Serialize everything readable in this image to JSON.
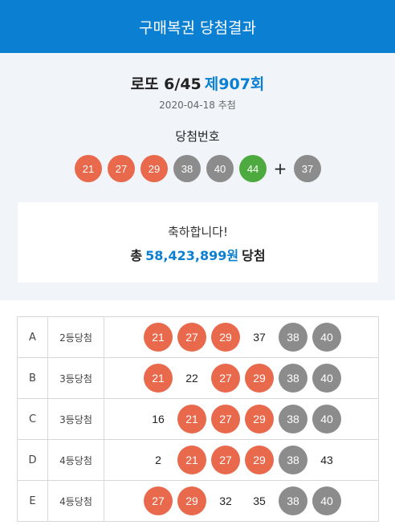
{
  "header": {
    "title": "구매복권 당첨결과"
  },
  "summary": {
    "game_name": "로또 6/45",
    "round": "제907회",
    "draw_date": "2020-04-18 추첨",
    "winning_label": "당첨번호",
    "winning_numbers": [
      "21",
      "27",
      "29",
      "38",
      "40",
      "44"
    ],
    "plus_sign": "+",
    "bonus_number": "37",
    "congrats": "축하합니다!",
    "prize_prefix": "총",
    "prize_amount": "58,423,899원",
    "prize_suffix": "당첨"
  },
  "colors": {
    "header_bg": "#0b7fd1",
    "accent": "#0b7fd1",
    "ball_red": "#e8694c",
    "ball_gray": "#8c8c8c",
    "ball_green": "#4caa3f"
  },
  "winning_ball_colors": [
    "red",
    "red",
    "red",
    "gray",
    "gray",
    "green"
  ],
  "bonus_ball_color": "gray",
  "tickets": [
    {
      "game": "A",
      "rank": "2등당첨",
      "numbers": [
        {
          "n": "21",
          "style": "red"
        },
        {
          "n": "27",
          "style": "red"
        },
        {
          "n": "29",
          "style": "red"
        },
        {
          "n": "37",
          "style": "plain"
        },
        {
          "n": "38",
          "style": "gray"
        },
        {
          "n": "40",
          "style": "gray"
        }
      ]
    },
    {
      "game": "B",
      "rank": "3등당첨",
      "numbers": [
        {
          "n": "21",
          "style": "red"
        },
        {
          "n": "22",
          "style": "plain"
        },
        {
          "n": "27",
          "style": "red"
        },
        {
          "n": "29",
          "style": "red"
        },
        {
          "n": "38",
          "style": "gray"
        },
        {
          "n": "40",
          "style": "gray"
        }
      ]
    },
    {
      "game": "C",
      "rank": "3등당첨",
      "numbers": [
        {
          "n": "16",
          "style": "plain"
        },
        {
          "n": "21",
          "style": "red"
        },
        {
          "n": "27",
          "style": "red"
        },
        {
          "n": "29",
          "style": "red"
        },
        {
          "n": "38",
          "style": "gray"
        },
        {
          "n": "40",
          "style": "gray"
        }
      ]
    },
    {
      "game": "D",
      "rank": "4등당첨",
      "numbers": [
        {
          "n": "2",
          "style": "plain"
        },
        {
          "n": "21",
          "style": "red"
        },
        {
          "n": "27",
          "style": "red"
        },
        {
          "n": "29",
          "style": "red"
        },
        {
          "n": "38",
          "style": "gray"
        },
        {
          "n": "43",
          "style": "plain"
        }
      ]
    },
    {
      "game": "E",
      "rank": "4등당첨",
      "numbers": [
        {
          "n": "27",
          "style": "red"
        },
        {
          "n": "29",
          "style": "red"
        },
        {
          "n": "32",
          "style": "plain"
        },
        {
          "n": "35",
          "style": "plain"
        },
        {
          "n": "38",
          "style": "gray"
        },
        {
          "n": "40",
          "style": "gray"
        }
      ]
    }
  ]
}
